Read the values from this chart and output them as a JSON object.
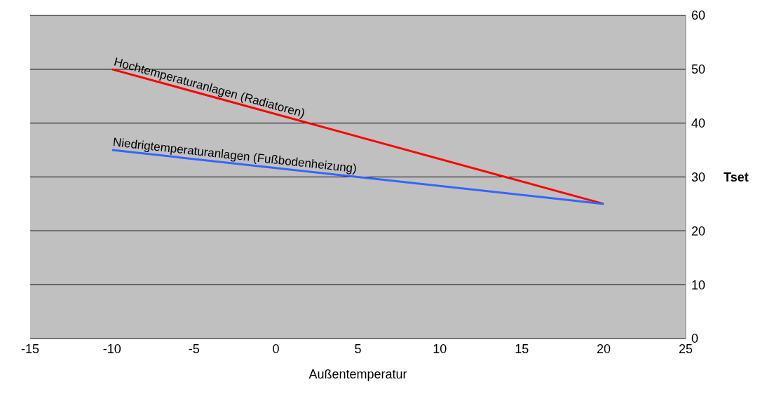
{
  "chart_data": {
    "type": "line",
    "xlabel": "Außentemperatur",
    "ylabel": "Tset",
    "x": [
      -10,
      20
    ],
    "series": [
      {
        "name": "Hochtemperaturanlagen (Radiatoren)",
        "color": "#ff0000",
        "values": [
          50,
          25
        ]
      },
      {
        "name": "Niedrigtemperaturanlagen (Fußbodenheizung)",
        "color": "#3366ff",
        "values": [
          35,
          25
        ]
      }
    ],
    "xlim": [
      -15,
      25
    ],
    "xticks": [
      -15,
      -10,
      -5,
      0,
      5,
      10,
      15,
      20,
      25
    ],
    "ylim": [
      0,
      60
    ],
    "yticks": [
      0,
      10,
      20,
      30,
      40,
      50,
      60
    ],
    "grid": "y",
    "marker": "none",
    "line_style": "solid"
  }
}
